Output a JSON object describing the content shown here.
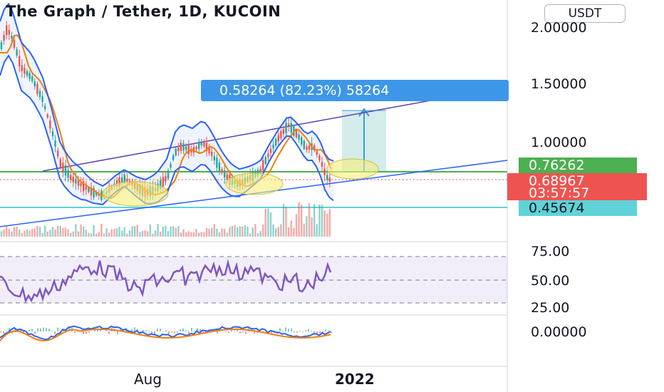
{
  "header": {
    "title": "The Graph / Tether, 1D, KUCOIN",
    "currency_button": "USDT"
  },
  "price_axis": {
    "ticks": [
      "2.00000",
      "1.50000",
      "1.00000"
    ]
  },
  "price_tags": {
    "upper_level": "0.76262",
    "last_price": "0.68967",
    "countdown": "03:57:57",
    "lower_level": "0.45674"
  },
  "measure_label": "0.58264 (82.23%) 58264",
  "rsi_axis": {
    "ticks": [
      "75.00",
      "50.00",
      "25.00"
    ]
  },
  "macd_axis": {
    "ticks": [
      "0.00000"
    ]
  },
  "time_axis": {
    "labels": [
      "Aug",
      "2022"
    ]
  },
  "colors": {
    "up": "#26a69a",
    "down": "#ef5350",
    "bollinger": "#2962ff",
    "ema": "#f57c00",
    "channel": "#5b3fb8",
    "level_upper": "#4caf50",
    "level_lower": "#5fd3d8",
    "rsi": "#7e57c2",
    "measure": "#3d96e8",
    "highlight": "#f5ee7a"
  }
}
